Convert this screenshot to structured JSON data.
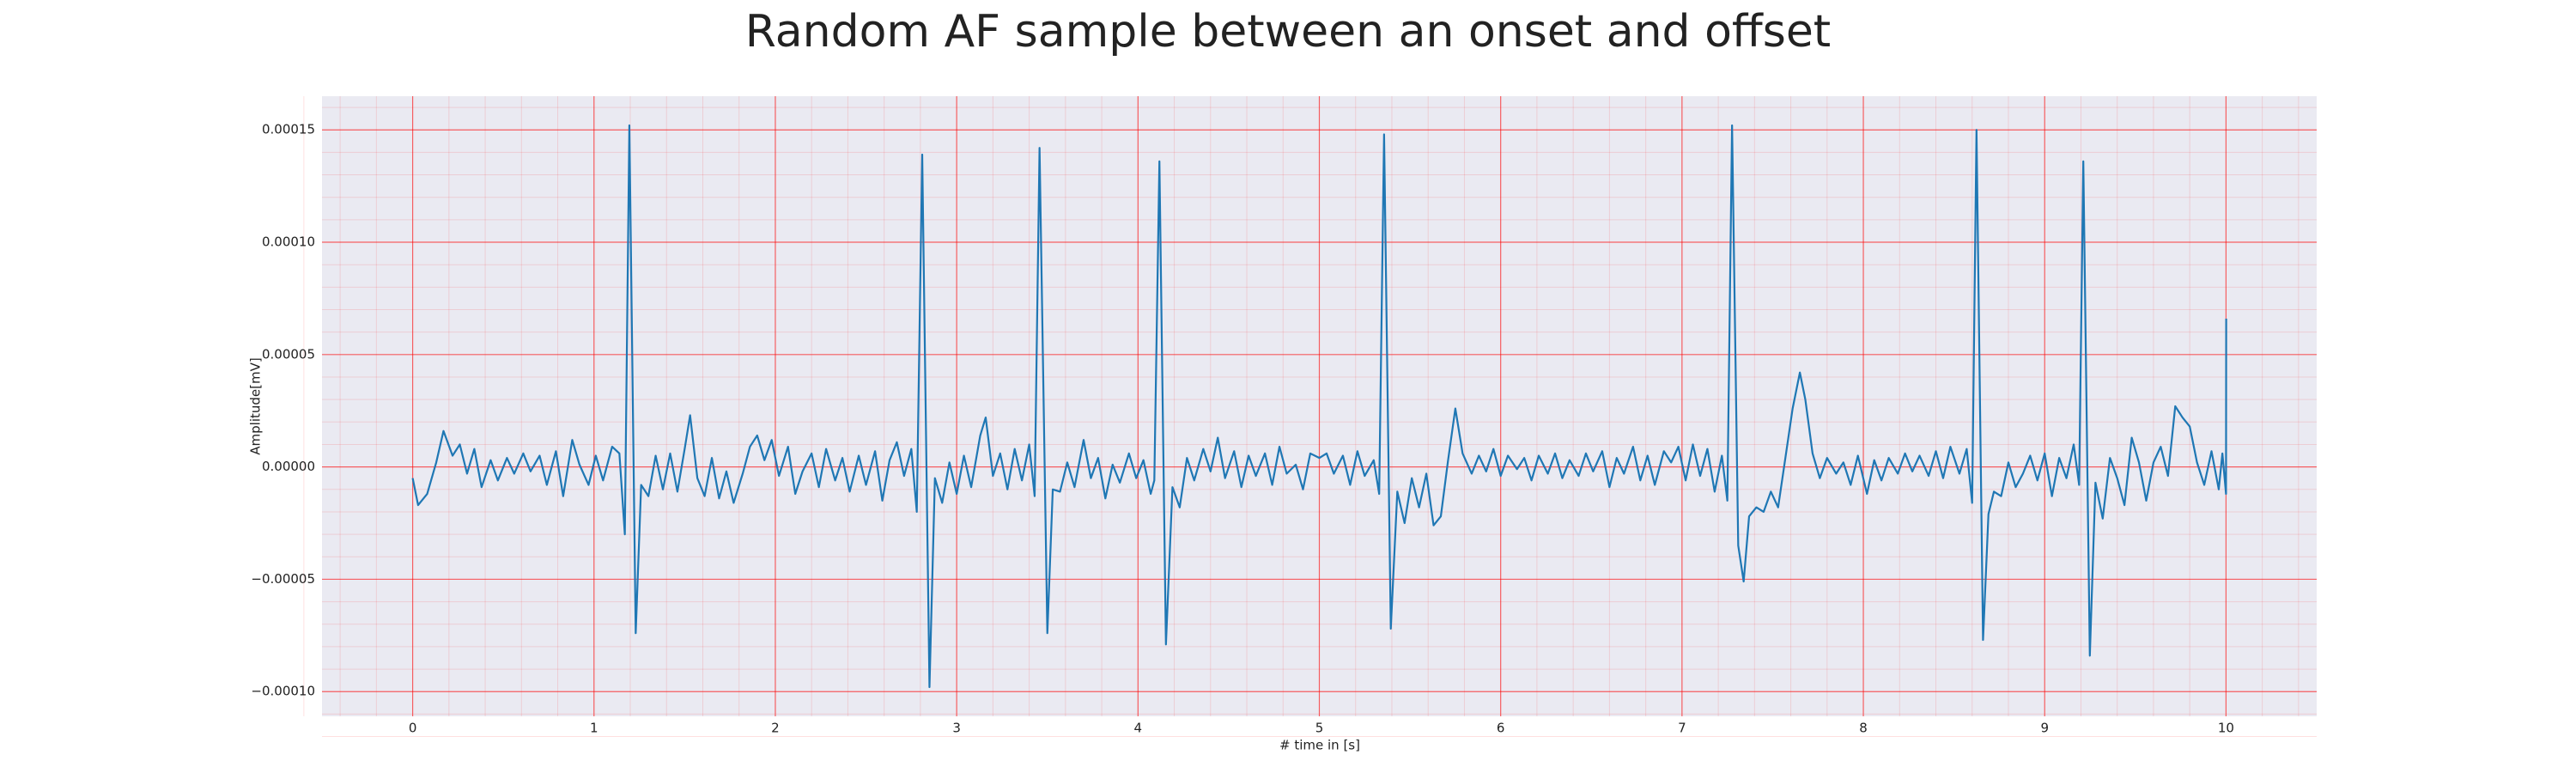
{
  "chart_data": {
    "type": "line",
    "title": "Random AF sample between an onset and offset",
    "xlabel": "# time in [s]",
    "ylabel": "Amplitude[mV]",
    "x": [
      0.0,
      0.03,
      0.08,
      0.13,
      0.17,
      0.22,
      0.26,
      0.3,
      0.34,
      0.38,
      0.43,
      0.47,
      0.52,
      0.56,
      0.61,
      0.65,
      0.7,
      0.74,
      0.79,
      0.83,
      0.88,
      0.92,
      0.97,
      1.01,
      1.05,
      1.1,
      1.14,
      1.17,
      1.195,
      1.23,
      1.26,
      1.3,
      1.34,
      1.38,
      1.42,
      1.46,
      1.5,
      1.53,
      1.57,
      1.61,
      1.65,
      1.69,
      1.73,
      1.77,
      1.82,
      1.86,
      1.9,
      1.94,
      1.98,
      2.02,
      2.07,
      2.11,
      2.15,
      2.2,
      2.24,
      2.28,
      2.33,
      2.37,
      2.41,
      2.46,
      2.5,
      2.55,
      2.59,
      2.63,
      2.67,
      2.71,
      2.75,
      2.78,
      2.81,
      2.85,
      2.88,
      2.92,
      2.96,
      3.0,
      3.04,
      3.08,
      3.13,
      3.16,
      3.2,
      3.24,
      3.28,
      3.32,
      3.36,
      3.4,
      3.43,
      3.457,
      3.5,
      3.53,
      3.57,
      3.61,
      3.65,
      3.7,
      3.74,
      3.78,
      3.82,
      3.86,
      3.9,
      3.95,
      3.99,
      4.03,
      4.07,
      4.09,
      4.118,
      4.154,
      4.19,
      4.23,
      4.27,
      4.31,
      4.36,
      4.4,
      4.44,
      4.48,
      4.53,
      4.57,
      4.61,
      4.65,
      4.7,
      4.74,
      4.78,
      4.82,
      4.87,
      4.91,
      4.95,
      5.0,
      5.04,
      5.08,
      5.13,
      5.17,
      5.21,
      5.25,
      5.3,
      5.33,
      5.357,
      5.394,
      5.43,
      5.47,
      5.51,
      5.55,
      5.59,
      5.63,
      5.67,
      5.71,
      5.75,
      5.79,
      5.84,
      5.88,
      5.92,
      5.96,
      6.0,
      6.04,
      6.09,
      6.13,
      6.17,
      6.21,
      6.26,
      6.3,
      6.34,
      6.38,
      6.43,
      6.47,
      6.51,
      6.56,
      6.6,
      6.64,
      6.68,
      6.73,
      6.77,
      6.81,
      6.85,
      6.9,
      6.94,
      6.98,
      7.02,
      7.06,
      7.1,
      7.14,
      7.18,
      7.22,
      7.25,
      7.276,
      7.31,
      7.34,
      7.37,
      7.41,
      7.45,
      7.49,
      7.53,
      7.57,
      7.61,
      7.65,
      7.68,
      7.72,
      7.76,
      7.8,
      7.85,
      7.89,
      7.93,
      7.97,
      8.02,
      8.06,
      8.1,
      8.14,
      8.19,
      8.23,
      8.27,
      8.31,
      8.36,
      8.4,
      8.44,
      8.48,
      8.53,
      8.57,
      8.6,
      8.624,
      8.66,
      8.69,
      8.72,
      8.76,
      8.8,
      8.84,
      8.88,
      8.92,
      8.96,
      9.0,
      9.04,
      9.08,
      9.12,
      9.16,
      9.19,
      9.213,
      9.249,
      9.28,
      9.32,
      9.36,
      9.4,
      9.44,
      9.48,
      9.52,
      9.56,
      9.6,
      9.64,
      9.68,
      9.72,
      9.76,
      9.8,
      9.84,
      9.88,
      9.92,
      9.96,
      9.98,
      10.0,
      10.001
    ],
    "series": [
      {
        "color": "#1f77b4",
        "values": [
          -5e-06,
          -1.7e-05,
          -1.2e-05,
          2e-06,
          1.6e-05,
          5e-06,
          1e-05,
          -3e-06,
          8e-06,
          -9e-06,
          3e-06,
          -6e-06,
          4e-06,
          -3e-06,
          6e-06,
          -2e-06,
          5e-06,
          -8e-06,
          7e-06,
          -1.3e-05,
          1.2e-05,
          1e-06,
          -8e-06,
          5e-06,
          -6e-06,
          9e-06,
          6e-06,
          -3e-05,
          0.000152,
          -7.4e-05,
          -8e-06,
          -1.3e-05,
          5e-06,
          -1e-05,
          6e-06,
          -1.1e-05,
          8e-06,
          2.3e-05,
          -5e-06,
          -1.3e-05,
          4e-06,
          -1.4e-05,
          -2e-06,
          -1.6e-05,
          -3e-06,
          9e-06,
          1.4e-05,
          3e-06,
          1.2e-05,
          -4e-06,
          9e-06,
          -1.2e-05,
          -2e-06,
          6e-06,
          -9e-06,
          8e-06,
          -6e-06,
          4e-06,
          -1.1e-05,
          5e-06,
          -8e-06,
          7e-06,
          -1.5e-05,
          3e-06,
          1.1e-05,
          -4e-06,
          8e-06,
          -2e-05,
          0.000139,
          -9.8e-05,
          -5e-06,
          -1.6e-05,
          2e-06,
          -1.2e-05,
          5e-06,
          -9e-06,
          1.4e-05,
          2.2e-05,
          -4e-06,
          6e-06,
          -1e-05,
          8e-06,
          -6e-06,
          1e-05,
          -1.3e-05,
          0.000142,
          -7.4e-05,
          -1e-05,
          -1.1e-05,
          2e-06,
          -9e-06,
          1.2e-05,
          -5e-06,
          4e-06,
          -1.4e-05,
          1e-06,
          -7e-06,
          6e-06,
          -5e-06,
          3e-06,
          -1.2e-05,
          -6e-06,
          0.000136,
          -7.9e-05,
          -9e-06,
          -1.8e-05,
          4e-06,
          -6e-06,
          8e-06,
          -2e-06,
          1.3e-05,
          -5e-06,
          7e-06,
          -9e-06,
          5e-06,
          -4e-06,
          6e-06,
          -8e-06,
          9e-06,
          -3e-06,
          1e-06,
          -1e-05,
          6e-06,
          4e-06,
          6e-06,
          -3e-06,
          5e-06,
          -8e-06,
          7e-06,
          -4e-06,
          3e-06,
          -1.2e-05,
          0.000148,
          -7.2e-05,
          -1.1e-05,
          -2.5e-05,
          -5e-06,
          -1.8e-05,
          -3e-06,
          -2.6e-05,
          -2.2e-05,
          3e-06,
          2.6e-05,
          6e-06,
          -3e-06,
          5e-06,
          -2e-06,
          8e-06,
          -4e-06,
          5e-06,
          -1e-06,
          4e-06,
          -6e-06,
          5e-06,
          -3e-06,
          6e-06,
          -5e-06,
          3e-06,
          -4e-06,
          6e-06,
          -2e-06,
          7e-06,
          -9e-06,
          4e-06,
          -3e-06,
          9e-06,
          -6e-06,
          5e-06,
          -8e-06,
          7e-06,
          2e-06,
          9e-06,
          -6e-06,
          1e-05,
          -4e-06,
          8e-06,
          -1.1e-05,
          5e-06,
          -1.5e-05,
          0.000152,
          -3.5e-05,
          -5.1e-05,
          -2.2e-05,
          -1.8e-05,
          -2e-05,
          -1.1e-05,
          -1.8e-05,
          4e-06,
          2.6e-05,
          4.2e-05,
          3e-05,
          6e-06,
          -5e-06,
          4e-06,
          -3e-06,
          2e-06,
          -8e-06,
          5e-06,
          -1.2e-05,
          3e-06,
          -6e-06,
          4e-06,
          -3e-06,
          6e-06,
          -2e-06,
          5e-06,
          -4e-06,
          7e-06,
          -5e-06,
          9e-06,
          -3e-06,
          8e-06,
          -1.6e-05,
          0.00015,
          -7.7e-05,
          -2.1e-05,
          -1.1e-05,
          -1.3e-05,
          2e-06,
          -9e-06,
          -3e-06,
          5e-06,
          -6e-06,
          6e-06,
          -1.3e-05,
          4e-06,
          -5e-06,
          1e-05,
          -8e-06,
          0.000136,
          -8.4e-05,
          -7e-06,
          -2.3e-05,
          4e-06,
          -5e-06,
          -1.7e-05,
          1.3e-05,
          2e-06,
          -1.5e-05,
          2e-06,
          9e-06,
          -4e-06,
          2.7e-05,
          2.2e-05,
          1.8e-05,
          2e-06,
          -8e-06,
          7e-06,
          -1e-05,
          6e-06,
          -1.2e-05,
          6.6e-05
        ]
      }
    ],
    "xlim": [
      -0.5,
      10.5
    ],
    "xticks": [
      0,
      1,
      2,
      3,
      4,
      5,
      6,
      7,
      8,
      9,
      10
    ],
    "ylim": [
      -0.000111,
      0.000165
    ],
    "yticks": [
      {
        "value": -0.0001,
        "label": "−0.00010"
      },
      {
        "value": -5e-05,
        "label": "−0.00005"
      },
      {
        "value": 0,
        "label": "0.00000"
      },
      {
        "value": 5e-05,
        "label": "0.00005"
      },
      {
        "value": 0.0001,
        "label": "0.00010"
      },
      {
        "value": 0.00015,
        "label": "0.00015"
      }
    ],
    "grid": true,
    "grid_color": "#ff0000",
    "minor_grid": true,
    "background": "#eaeaf2"
  }
}
